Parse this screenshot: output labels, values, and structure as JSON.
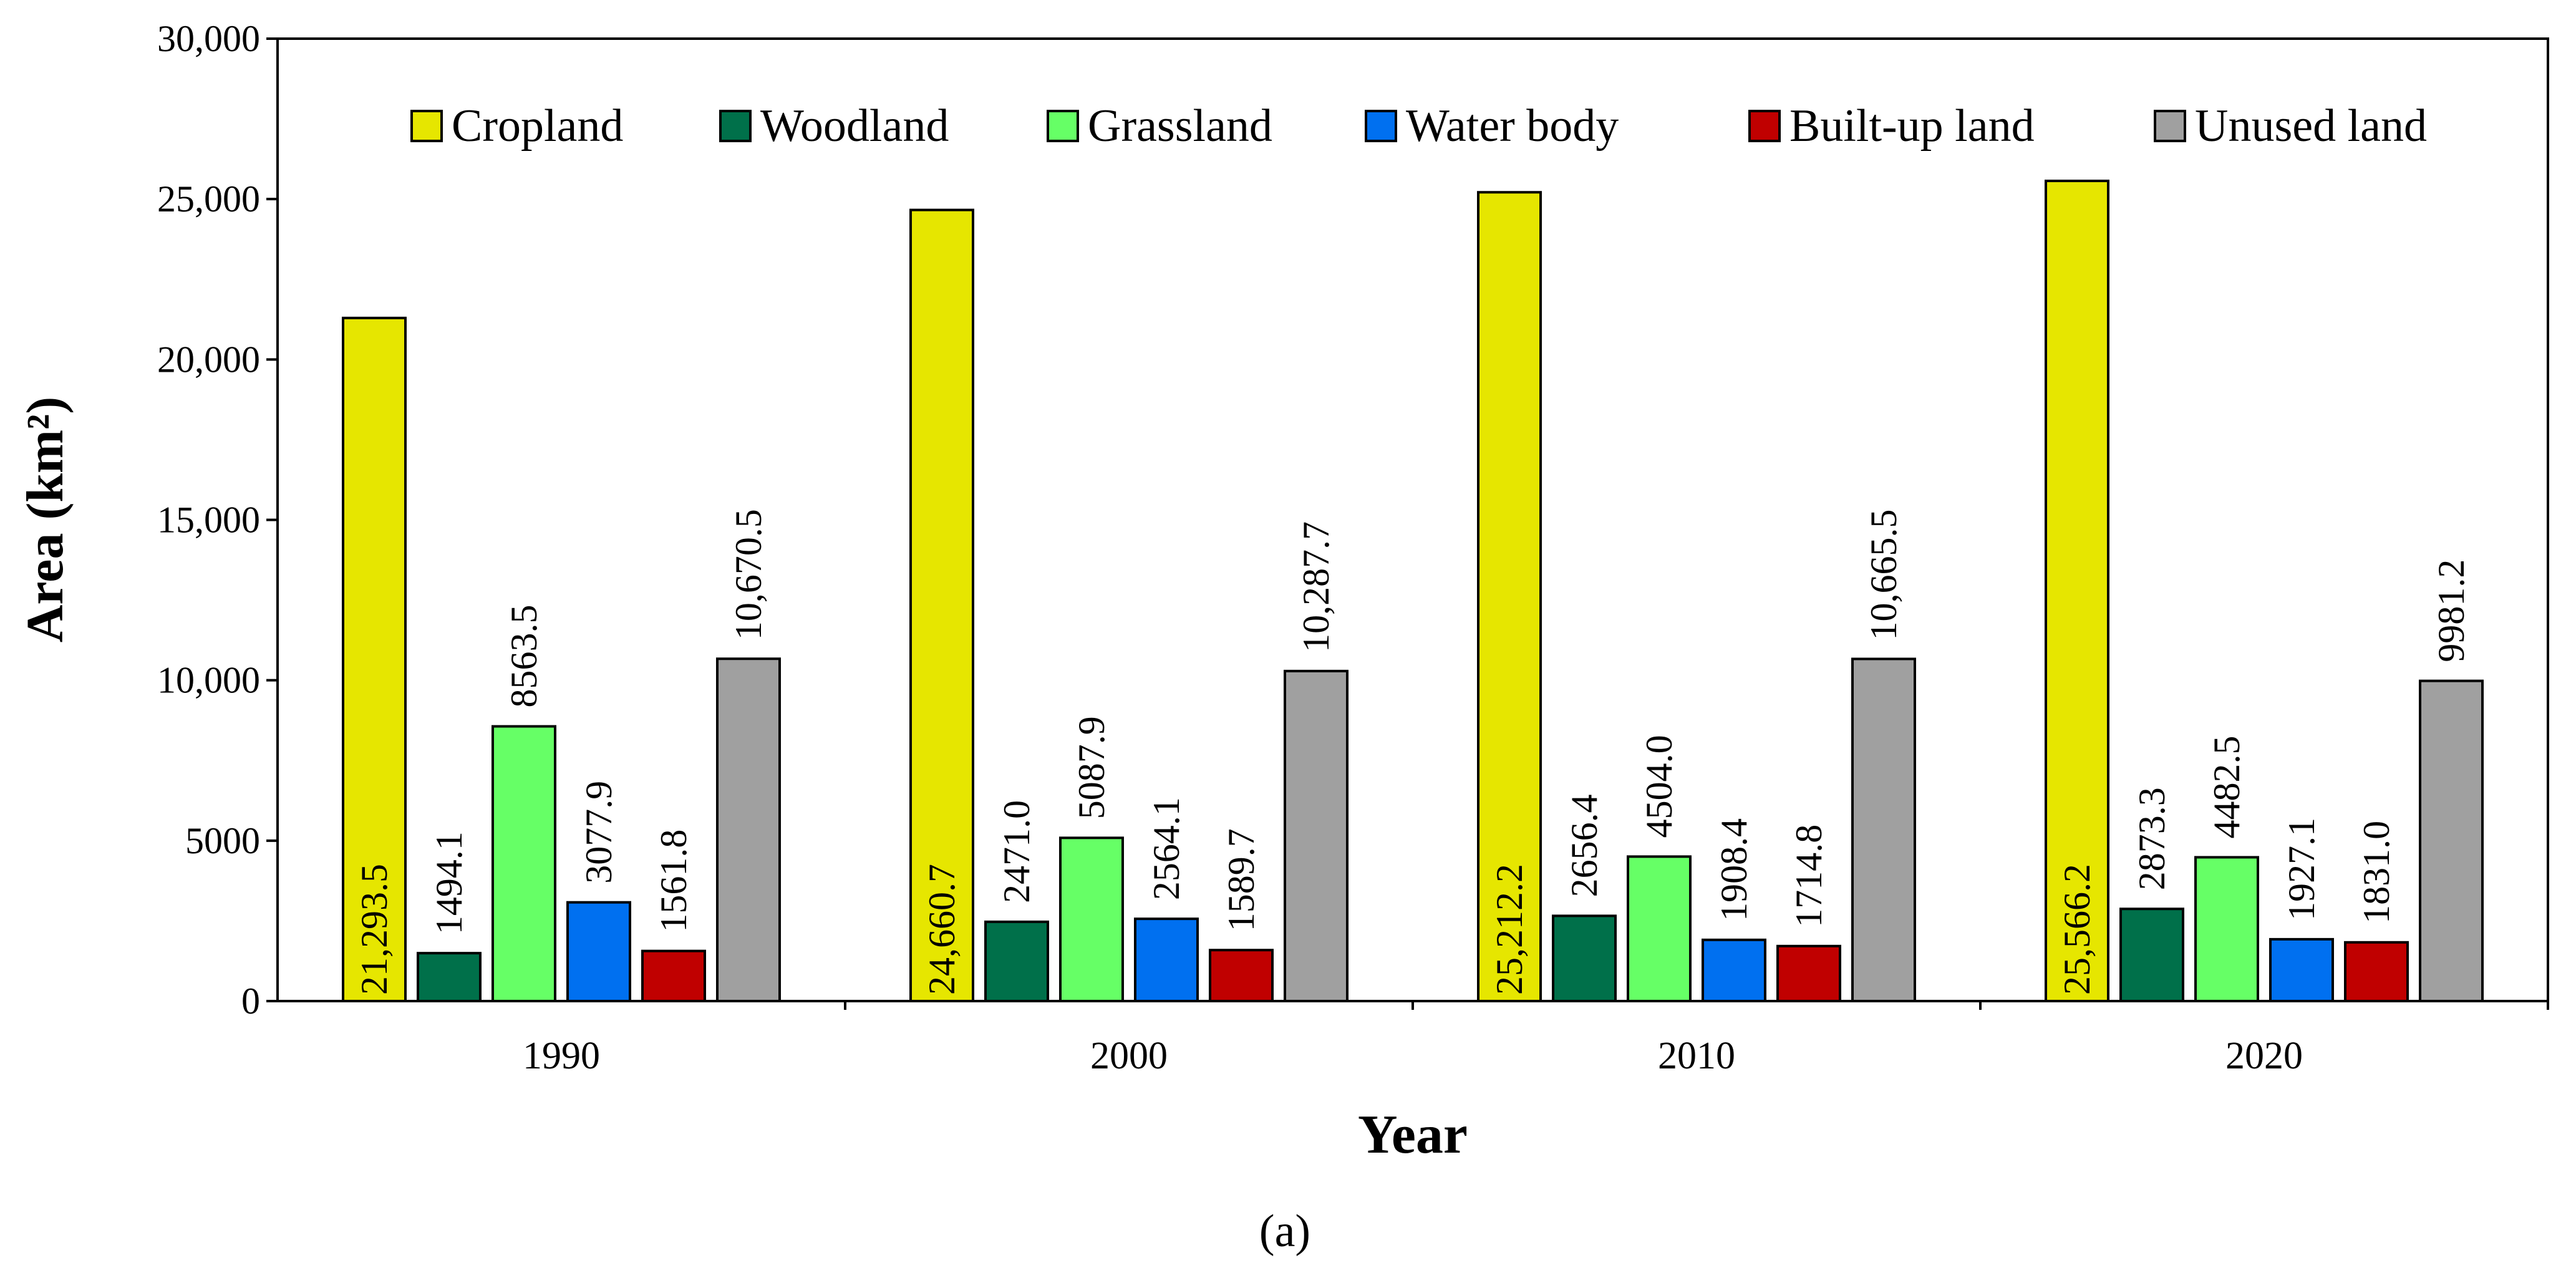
{
  "chart_data": {
    "type": "bar",
    "categories": [
      "1990",
      "2000",
      "2010",
      "2020"
    ],
    "series": [
      {
        "name": "Cropland",
        "color": "#e6e600",
        "values": [
          21293.5,
          24660.7,
          25212.2,
          25566.2
        ],
        "labels": [
          "21,293.5",
          "24,660.7",
          "25,212.2",
          "25,566.2"
        ]
      },
      {
        "name": "Woodland",
        "color": "#00704a",
        "values": [
          1494.1,
          2471.0,
          2656.4,
          2873.3
        ],
        "labels": [
          "1494.1",
          "2471.0",
          "2656.4",
          "2873.3"
        ]
      },
      {
        "name": "Grassland",
        "color": "#66ff66",
        "values": [
          8563.5,
          5087.9,
          4504.0,
          4482.5
        ],
        "labels": [
          "8563.5",
          "5087.9",
          "4504.0",
          "4482.5"
        ]
      },
      {
        "name": "Water body",
        "color": "#0070f0",
        "values": [
          3077.9,
          2564.1,
          1908.4,
          1927.1
        ],
        "labels": [
          "3077.9",
          "2564.1",
          "1908.4",
          "1927.1"
        ]
      },
      {
        "name": "Built-up land",
        "color": "#c00000",
        "values": [
          1561.8,
          1589.7,
          1714.8,
          1831.0
        ],
        "labels": [
          "1561.8",
          "1589.7",
          "1714.8",
          "1831.0"
        ]
      },
      {
        "name": "Unused land",
        "color": "#a0a0a0",
        "values": [
          10670.5,
          10287.7,
          10665.5,
          9981.2
        ],
        "labels": [
          "10,670.5",
          "10,287.7",
          "10,665.5",
          "9981.2"
        ]
      }
    ],
    "xlabel": "Year",
    "ylabel": "Area  (km²)",
    "ylim": [
      0,
      30000
    ],
    "yticks": [
      0,
      5000,
      10000,
      15000,
      20000,
      25000,
      30000
    ],
    "ytick_labels": [
      "0",
      "5000",
      "10,000",
      "15,000",
      "20,000",
      "25,000",
      "30,000"
    ],
    "legend_position": "top",
    "grid": false,
    "caption": "(a)"
  }
}
